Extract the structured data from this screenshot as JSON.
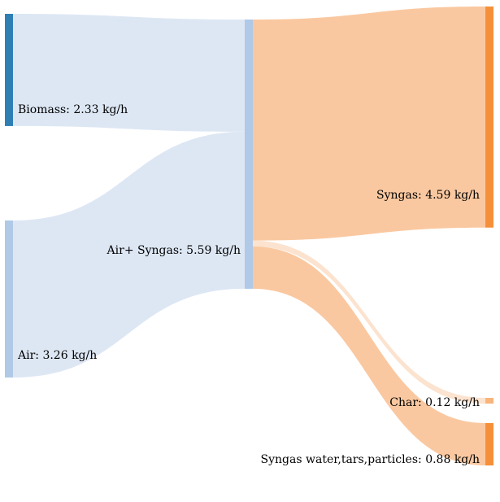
{
  "colors": {
    "biomass_node": "#2f7fb5",
    "air_node": "#b0c9e6",
    "mix_node": "#b0c9e6",
    "syngas_node": "#f59039",
    "char_node": "#f9b47c",
    "water_node": "#f59039",
    "blue_link": "#dde7f4",
    "orange_link": "#fac8a0",
    "char_link": "#fbe3cf"
  },
  "chart_data": {
    "type": "sankey",
    "nodes": [
      {
        "id": "biomass",
        "label": "Biomass: 2.33 kg/h",
        "value": 2.33
      },
      {
        "id": "air",
        "label": "Air: 3.26 kg/h",
        "value": 3.26
      },
      {
        "id": "mix",
        "label": "Air+ Syngas: 5.59 kg/h",
        "value": 5.59
      },
      {
        "id": "syngas",
        "label": "Syngas: 4.59 kg/h",
        "value": 4.59
      },
      {
        "id": "char",
        "label": "Char: 0.12 kg/h",
        "value": 0.12
      },
      {
        "id": "water",
        "label": "Syngas water,tars,particles: 0.88 kg/h",
        "value": 0.88
      }
    ],
    "links": [
      {
        "source": "biomass",
        "target": "mix",
        "value": 2.33
      },
      {
        "source": "air",
        "target": "mix",
        "value": 3.26
      },
      {
        "source": "mix",
        "target": "syngas",
        "value": 4.59
      },
      {
        "source": "mix",
        "target": "char",
        "value": 0.12
      },
      {
        "source": "mix",
        "target": "water",
        "value": 0.88
      }
    ]
  }
}
